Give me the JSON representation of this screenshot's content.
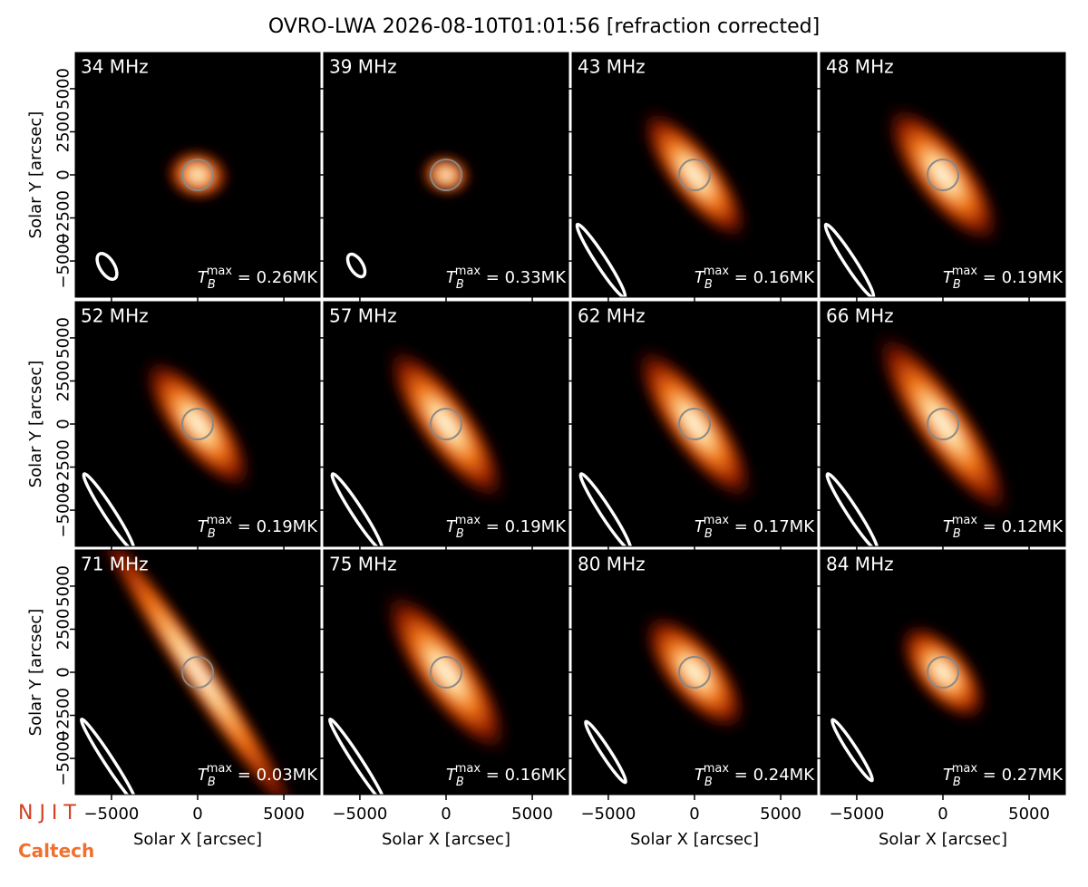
{
  "chart_data": {
    "type": "image-grid",
    "title": "OVRO-LWA 2026-08-10T01:01:56 [refraction corrected]",
    "xlabel": "Solar X [arcsec]",
    "ylabel": "Solar Y [arcsec]",
    "xlim": [
      -7100,
      7100
    ],
    "ylim": [
      -7100,
      7100
    ],
    "xticks": [
      {
        "value": -5000,
        "label": "−5000"
      },
      0,
      5000
    ],
    "yticks": [
      {
        "value": -5000,
        "label": "−5000"
      },
      {
        "value": -2500,
        "label": "−2500"
      },
      0,
      2500,
      5000
    ],
    "tb_symbol": "T",
    "tb_sub": "B",
    "tb_sup": "max",
    "panels": [
      {
        "label": "34 MHz",
        "tb_max": {
          "value": 0.26,
          "label": " = 0.26MK"
        }
      },
      {
        "label": "39 MHz",
        "tb_max": {
          "value": 0.33,
          "label": " = 0.33MK"
        }
      },
      {
        "label": "43 MHz",
        "tb_max": {
          "value": 0.16,
          "label": " = 0.16MK"
        }
      },
      {
        "label": "48 MHz",
        "tb_max": {
          "value": 0.19,
          "label": " = 0.19MK"
        }
      },
      {
        "label": "52 MHz",
        "tb_max": {
          "value": 0.19,
          "label": " = 0.19MK"
        }
      },
      {
        "label": "57 MHz",
        "tb_max": {
          "value": 0.19,
          "label": " = 0.19MK"
        }
      },
      {
        "label": "62 MHz",
        "tb_max": {
          "value": 0.17,
          "label": " = 0.17MK"
        }
      },
      {
        "label": "66 MHz",
        "tb_max": {
          "value": 0.12,
          "label": " = 0.12MK"
        }
      },
      {
        "label": "71 MHz",
        "tb_max": {
          "value": 0.03,
          "label": " = 0.03MK"
        }
      },
      {
        "label": "75 MHz",
        "tb_max": {
          "value": 0.16,
          "label": " = 0.16MK"
        }
      },
      {
        "label": "80 MHz",
        "tb_max": {
          "value": 0.24,
          "label": " = 0.24MK"
        }
      },
      {
        "label": "84 MHz",
        "tb_max": {
          "value": 0.27,
          "label": " = 0.27MK"
        }
      }
    ]
  },
  "logos": [
    "N J I T",
    "Caltech"
  ]
}
